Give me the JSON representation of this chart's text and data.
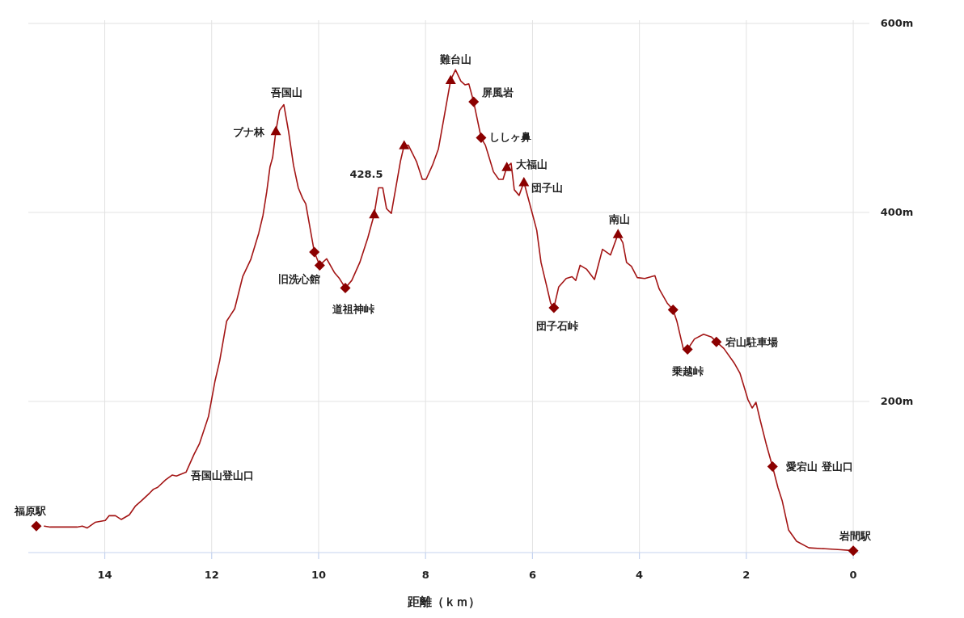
{
  "chart_data": {
    "type": "line",
    "xlabel": "距離（ｋｍ）",
    "xlim": [
      15.43,
      -0.12
    ],
    "ylim": [
      40,
      600
    ],
    "xticks": [
      14,
      12,
      10,
      8,
      6,
      4,
      2,
      0
    ],
    "yticks": [
      {
        "value": 600,
        "label": "600m"
      },
      {
        "value": 400,
        "label": "400m"
      },
      {
        "value": 200,
        "label": "200m"
      }
    ],
    "grid": true,
    "series": [
      {
        "color": "#a31515",
        "line_style": "solid",
        "marker": "none",
        "x": [
          15.13,
          15.02,
          14.52,
          14.42,
          14.33,
          14.18,
          13.99,
          13.92,
          13.8,
          13.69,
          13.54,
          13.43,
          13.31,
          13.16,
          13.09,
          13.01,
          12.86,
          12.74,
          12.66,
          12.48,
          12.33,
          12.23,
          12.06,
          11.94,
          11.85,
          11.72,
          11.65,
          11.57,
          11.42,
          11.27,
          11.12,
          11.04,
          10.97,
          10.91,
          10.86,
          10.8,
          10.73,
          10.65,
          10.56,
          10.47,
          10.38,
          10.3,
          10.24,
          10.08,
          9.98,
          9.85,
          9.7,
          9.61,
          9.5,
          9.38,
          9.23,
          9.08,
          8.96,
          8.88,
          8.8,
          8.73,
          8.64,
          8.55,
          8.47,
          8.4,
          8.32,
          8.17,
          8.06,
          7.99,
          7.87,
          7.76,
          7.64,
          7.53,
          7.44,
          7.34,
          7.26,
          7.19,
          7.1,
          7.03,
          6.96,
          6.88,
          6.81,
          6.73,
          6.63,
          6.55,
          6.48,
          6.4,
          6.34,
          6.25,
          6.16,
          5.98,
          5.92,
          5.84,
          5.73,
          5.66,
          5.6,
          5.51,
          5.37,
          5.26,
          5.19,
          5.11,
          4.99,
          4.84,
          4.69,
          4.54,
          4.4,
          4.31,
          4.24,
          4.15,
          4.04,
          3.9,
          3.71,
          3.63,
          3.59,
          3.48,
          3.37,
          3.3,
          3.18,
          3.1,
          2.97,
          2.8,
          2.65,
          2.56,
          2.42,
          2.22,
          2.12,
          1.97,
          1.89,
          1.82,
          1.74,
          1.62,
          1.51,
          1.41,
          1.33,
          1.21,
          1.06,
          0.83,
          0.53,
          0.23,
          0
        ],
        "values": [
          68,
          67,
          67,
          68,
          66,
          72,
          74,
          79,
          79,
          75,
          80,
          89,
          95,
          103,
          107,
          109,
          117,
          122,
          121,
          125,
          144,
          155,
          184,
          221,
          243,
          285,
          291,
          298,
          332,
          350,
          378,
          397,
          422,
          448,
          458,
          486,
          508,
          514,
          485,
          450,
          426,
          415,
          409,
          358,
          344,
          351,
          336,
          330,
          320,
          328,
          347,
          373,
          398,
          426,
          426,
          404,
          399,
          428,
          454,
          471,
          471,
          454,
          435,
          435,
          450,
          467,
          505,
          540,
          551,
          539,
          535,
          536,
          517,
          498,
          479,
          471,
          458,
          443,
          435,
          435,
          448,
          452,
          424,
          418,
          432,
          394,
          381,
          347,
          321,
          304,
          299,
          321,
          330,
          332,
          328,
          344,
          340,
          329,
          361,
          355,
          377,
          368,
          347,
          343,
          331,
          330,
          333,
          319,
          315,
          304,
          297,
          285,
          256,
          255,
          266,
          271,
          268,
          263,
          256,
          240,
          230,
          202,
          193,
          199,
          180,
          153,
          131,
          109,
          95,
          64,
          52,
          45,
          44,
          43,
          42
        ]
      },
      {
        "type": "scatter",
        "color": "#8b0000",
        "marker": "triangle",
        "x": [
          10.8,
          8.96,
          8.4,
          7.53,
          6.48,
          6.16,
          4.4
        ],
        "values": [
          486,
          398,
          471,
          540,
          448,
          432,
          377
        ]
      },
      {
        "type": "scatter",
        "color": "#8b0000",
        "marker": "diamond",
        "x": [
          15.28,
          10.08,
          9.98,
          9.5,
          7.1,
          6.96,
          5.6,
          3.37,
          3.1,
          2.56,
          1.51,
          0
        ],
        "values": [
          68,
          358,
          344,
          320,
          517,
          479,
          299,
          297,
          255,
          263,
          131,
          42
        ]
      }
    ],
    "annotations": [
      {
        "text": "福原駅",
        "x": 15.28,
        "y": 68
      },
      {
        "text": "吾国山登山口",
        "x": 12.48,
        "y": 125
      },
      {
        "text": "ブナ林",
        "x": 10.8,
        "y": 486
      },
      {
        "text": "吾国山",
        "x": 10.65,
        "y": 514
      },
      {
        "text": "旧洗心館",
        "x": 9.98,
        "y": 344
      },
      {
        "text": "428.5",
        "x": 8.88,
        "y": 428.5
      },
      {
        "text": "道祖神峠",
        "x": 9.5,
        "y": 320
      },
      {
        "text": "難台山",
        "x": 7.53,
        "y": 540
      },
      {
        "text": "屏風岩",
        "x": 7.1,
        "y": 517
      },
      {
        "text": "ししヶ鼻",
        "x": 6.96,
        "y": 479
      },
      {
        "text": "大福山",
        "x": 6.48,
        "y": 448
      },
      {
        "text": "団子山",
        "x": 6.16,
        "y": 432
      },
      {
        "text": "団子石峠",
        "x": 5.6,
        "y": 299
      },
      {
        "text": "南山",
        "x": 4.4,
        "y": 377
      },
      {
        "text": "乗越峠",
        "x": 3.1,
        "y": 255
      },
      {
        "text": "宕山駐車場",
        "x": 2.56,
        "y": 263
      },
      {
        "text": "愛宕山 登山口",
        "x": 1.51,
        "y": 131
      },
      {
        "text": "岩間駅",
        "x": 0,
        "y": 42
      }
    ]
  }
}
